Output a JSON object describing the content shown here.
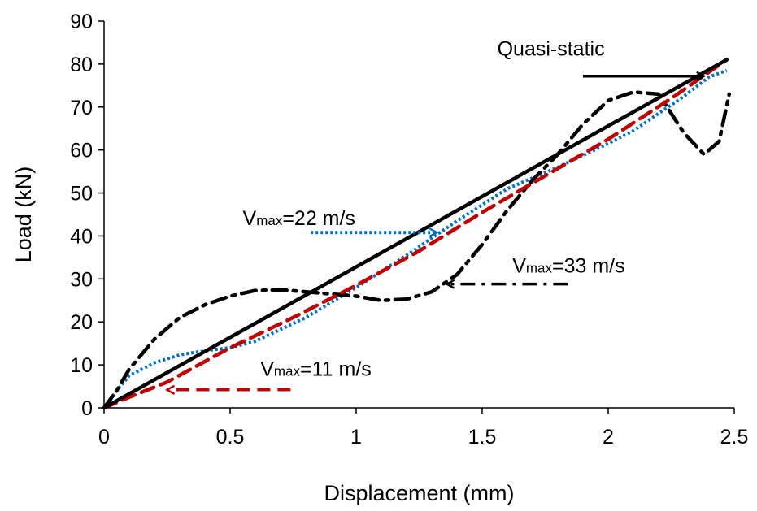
{
  "chart_data": {
    "type": "line",
    "title": "",
    "xlabel": "Displacement (mm)",
    "ylabel": "Load (kN)",
    "xlim": [
      0,
      2.5
    ],
    "ylim": [
      0,
      90
    ],
    "xticks": [
      0,
      0.5,
      1,
      1.5,
      2,
      2.5
    ],
    "xtick_labels": [
      "0",
      "0.5",
      "1",
      "1.5",
      "2",
      "2.5"
    ],
    "yticks": [
      0,
      10,
      20,
      30,
      40,
      50,
      60,
      70,
      80,
      90
    ],
    "ytick_labels": [
      "0",
      "10",
      "20",
      "30",
      "40",
      "50",
      "60",
      "70",
      "80",
      "90"
    ],
    "grid": false,
    "legend": "none",
    "series": [
      {
        "name": "",
        "color": "#0070c0",
        "dash": "dotted",
        "x": [
          0,
          0.05,
          0.1,
          0.2,
          0.3,
          0.4,
          0.5,
          0.6,
          0.8,
          1.0,
          1.2,
          1.4,
          1.6,
          1.8,
          2.0,
          2.1,
          2.2,
          2.3,
          2.4,
          2.47
        ],
        "y": [
          0,
          4,
          7.5,
          10.5,
          12.3,
          13.3,
          14,
          15.5,
          21,
          28,
          35.5,
          43.5,
          51,
          56,
          61.5,
          64.5,
          68.5,
          72.5,
          77,
          78.5
        ]
      },
      {
        "name": "",
        "color": "#000000",
        "dash": "dashdot",
        "x": [
          0,
          0.05,
          0.1,
          0.2,
          0.3,
          0.4,
          0.5,
          0.6,
          0.7,
          0.8,
          0.9,
          1.0,
          1.1,
          1.2,
          1.3,
          1.4,
          1.5,
          1.6,
          1.7,
          1.8,
          1.9,
          2.0,
          2.1,
          2.2,
          2.3,
          2.38,
          2.44,
          2.48
        ],
        "y": [
          0,
          4,
          9,
          16,
          21,
          24,
          26,
          27.3,
          27.5,
          27,
          26.5,
          26,
          25,
          25.3,
          27,
          31,
          38,
          46,
          53,
          59,
          66,
          71.5,
          73.5,
          73,
          64,
          59,
          62,
          73
        ]
      },
      {
        "name": "",
        "color": "#c00000",
        "dash": "dashed",
        "x": [
          0,
          0.1,
          0.25,
          0.5,
          0.75,
          1.0,
          1.25,
          1.5,
          1.75,
          2.0,
          2.25,
          2.47
        ],
        "y": [
          0,
          2.5,
          6,
          14,
          21,
          28.5,
          36.5,
          45.5,
          54,
          62.5,
          72,
          81
        ]
      },
      {
        "name": "",
        "color": "#000000",
        "dash": "solid",
        "x": [
          0,
          2.47
        ],
        "y": [
          0,
          81
        ]
      }
    ],
    "annotations": [
      {
        "text": "Quasi-static",
        "sub": "",
        "rest": "",
        "color": "#000000",
        "dash": "solid",
        "arrow_from": [
          1.9,
          77.2
        ],
        "arrow_to": [
          2.38,
          77.2
        ],
        "text_at": [
          1.56,
          82
        ]
      },
      {
        "text": "V",
        "sub": "max",
        "rest": "=22 m/s",
        "color": "#0070c0",
        "dash": "dotted",
        "arrow_from": [
          0.82,
          40.8
        ],
        "arrow_to": [
          1.32,
          40.8
        ],
        "text_at": [
          0.55,
          42.5
        ]
      },
      {
        "text": "V",
        "sub": "max",
        "rest": "=33 m/s",
        "color": "#000000",
        "dash": "dashdot",
        "arrow_from": [
          1.84,
          28.8
        ],
        "arrow_to": [
          1.36,
          28.8
        ],
        "text_at": [
          1.62,
          31.5
        ]
      },
      {
        "text": "V",
        "sub": "max",
        "rest": "=11 m/s",
        "color": "#c00000",
        "dash": "dashed",
        "arrow_from": [
          0.74,
          4.2
        ],
        "arrow_to": [
          0.25,
          4.2
        ],
        "text_at": [
          0.62,
          7.5
        ]
      }
    ]
  }
}
